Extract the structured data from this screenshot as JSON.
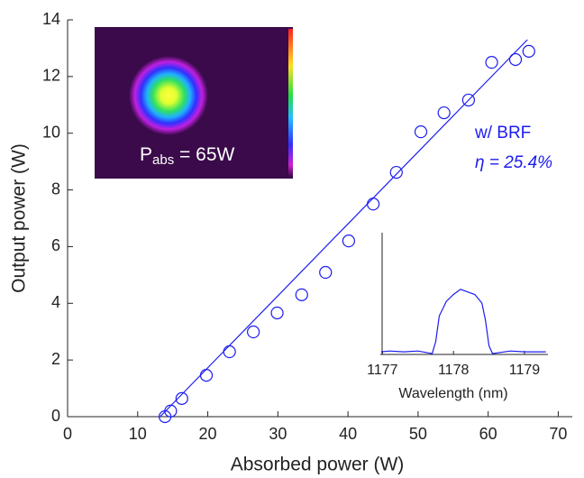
{
  "chart_data": [
    {
      "type": "scatter",
      "xlabel": "Absorbed power (W)",
      "ylabel": "Output power (W)",
      "x": [
        13.9,
        14.7,
        16.3,
        19.8,
        23.1,
        26.5,
        29.9,
        33.4,
        36.8,
        40.1,
        43.6,
        46.9,
        50.4,
        53.7,
        57.2,
        60.5,
        63.9,
        65.8
      ],
      "values": [
        0,
        0.2,
        0.64,
        1.46,
        2.29,
        2.99,
        3.66,
        4.3,
        5.09,
        6.2,
        7.5,
        8.62,
        10.05,
        10.72,
        11.17,
        12.5,
        12.6,
        12.89
      ],
      "fit": {
        "x": [
          13.2,
          65.6
        ],
        "y": [
          0,
          13.3
        ]
      },
      "color": "#1c1cf0",
      "xlim": [
        0,
        72
      ],
      "ylim": [
        0,
        14
      ],
      "xticks": [
        0,
        10,
        20,
        30,
        40,
        50,
        60,
        70
      ],
      "yticks": [
        0,
        2,
        4,
        6,
        8,
        10,
        12,
        14
      ],
      "annotations": [
        "w/ BRF",
        "η = 25.4%"
      ],
      "inset_image_label": {
        "main": "P",
        "sub": "abs",
        "rest": " = 65W"
      }
    },
    {
      "type": "line",
      "xlabel": "Wavelength (nm)",
      "x": [
        1176.98,
        1177.1,
        1177.3,
        1177.5,
        1177.7,
        1177.75,
        1177.8,
        1177.9,
        1178.0,
        1178.1,
        1178.2,
        1178.3,
        1178.4,
        1178.45,
        1178.5,
        1178.55,
        1178.8,
        1179.0,
        1179.3
      ],
      "values": [
        0.03,
        0.04,
        0.03,
        0.04,
        0.01,
        0.15,
        0.45,
        0.62,
        0.7,
        0.76,
        0.73,
        0.7,
        0.6,
        0.4,
        0.1,
        0.01,
        0.04,
        0.03,
        0.03
      ],
      "color": "#1c1cf0",
      "xlim": [
        1176.97,
        1179.33
      ],
      "ylim": [
        0,
        1
      ],
      "xticks": [
        1177,
        1178,
        1179
      ]
    }
  ]
}
